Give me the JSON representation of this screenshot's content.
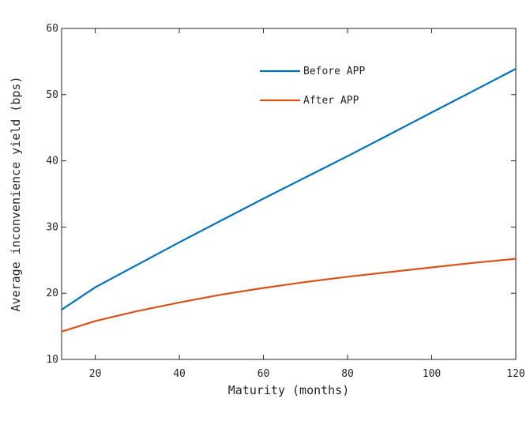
{
  "chart_data": {
    "type": "line",
    "xlabel": "Maturity (months)",
    "ylabel": "Average inconvenience yield (bps)",
    "xlim": [
      12,
      120
    ],
    "ylim": [
      10,
      60
    ],
    "xticks": [
      20,
      40,
      60,
      80,
      100,
      120
    ],
    "yticks": [
      10,
      20,
      30,
      40,
      50,
      60
    ],
    "grid": false,
    "legend_position": "top-right",
    "series": [
      {
        "name": "Before APP",
        "color": "#0072BD",
        "x": [
          12,
          20,
          30,
          40,
          50,
          60,
          70,
          80,
          90,
          100,
          110,
          120
        ],
        "y": [
          17.5,
          20.9,
          24.3,
          27.7,
          31.0,
          34.3,
          37.5,
          40.7,
          44.0,
          47.3,
          50.6,
          53.9
        ]
      },
      {
        "name": "After APP",
        "color": "#D95319",
        "x": [
          12,
          20,
          30,
          40,
          50,
          60,
          70,
          80,
          90,
          100,
          110,
          120
        ],
        "y": [
          14.2,
          15.8,
          17.3,
          18.6,
          19.8,
          20.8,
          21.7,
          22.5,
          23.2,
          23.9,
          24.6,
          25.2
        ]
      }
    ]
  }
}
